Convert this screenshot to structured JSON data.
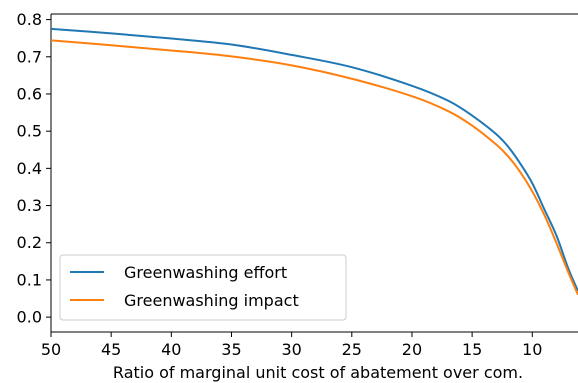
{
  "chart_data": {
    "type": "line",
    "title": "",
    "xlabel": "Ratio of marginal unit cost of abatement over com.",
    "ylabel": "",
    "xlim": [
      50,
      6.2
    ],
    "ylim": [
      -0.04,
      0.815
    ],
    "x_inverted": true,
    "grid": false,
    "legend_position": "lower-left",
    "x_ticks": [
      "50",
      "45",
      "40",
      "35",
      "30",
      "25",
      "20",
      "15",
      "10"
    ],
    "y_ticks": [
      "0.0",
      "0.1",
      "0.2",
      "0.3",
      "0.4",
      "0.5",
      "0.6",
      "0.7",
      "0.8"
    ],
    "series": [
      {
        "name": "Greenwashing effort",
        "color": "#1f77b4",
        "x": [
          50,
          45,
          40,
          35,
          30,
          25,
          20,
          17,
          15,
          13,
          12,
          11,
          10,
          9,
          8,
          7,
          6.2
        ],
        "y": [
          0.775,
          0.763,
          0.749,
          0.733,
          0.705,
          0.672,
          0.622,
          0.582,
          0.542,
          0.492,
          0.458,
          0.413,
          0.36,
          0.29,
          0.22,
          0.13,
          0.07
        ]
      },
      {
        "name": "Greenwashing impact",
        "color": "#ff7f0e",
        "x": [
          50,
          45,
          40,
          35,
          30,
          25,
          20,
          17,
          15,
          13,
          12,
          11,
          10,
          9,
          8,
          7,
          6.2
        ],
        "y": [
          0.744,
          0.731,
          0.717,
          0.701,
          0.677,
          0.641,
          0.594,
          0.554,
          0.515,
          0.464,
          0.432,
          0.39,
          0.338,
          0.275,
          0.2,
          0.12,
          0.06
        ]
      }
    ]
  }
}
